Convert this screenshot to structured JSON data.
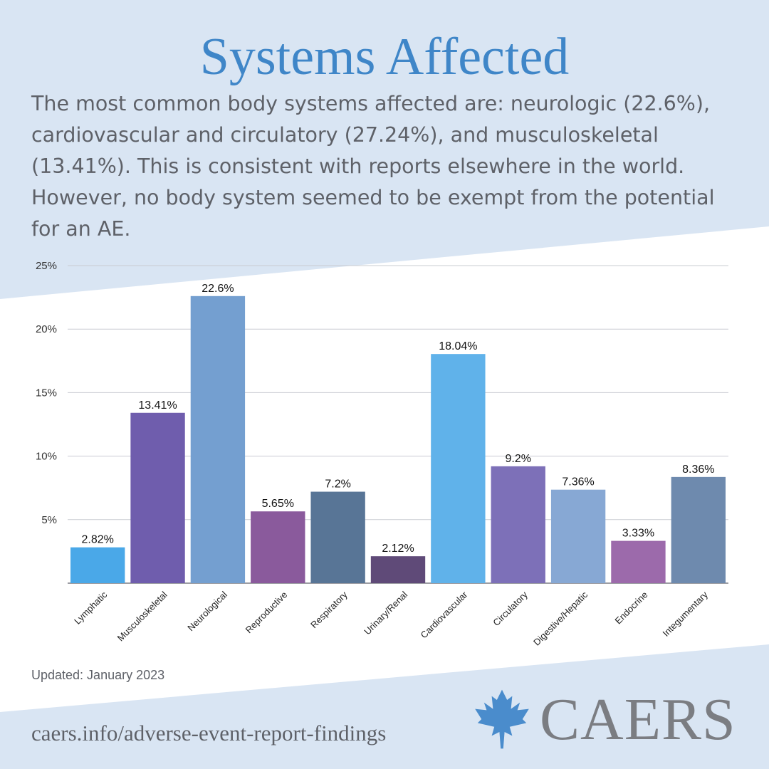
{
  "header": {
    "title": "Systems Affected",
    "description": "The most common body systems affected are: neurologic (22.6%), cardiovascular and circulatory (27.24%), and musculoskeletal (13.41%). This is consistent with reports elsewhere in the world. However, no body system seemed to be exempt from the potential for an AE."
  },
  "footer": {
    "updated": "Updated: January 2023",
    "url": "caers.info/adverse-event-report-findings",
    "logo_text": "CAERS",
    "logo_icon": "maple-leaf-icon"
  },
  "colors": {
    "background_band": "#d9e5f3",
    "title": "#3f86c8",
    "text": "#5e6168"
  },
  "chart_data": {
    "type": "bar",
    "categories": [
      "Lymphatic",
      "Musculoskeletal",
      "Neurological",
      "Reproductive",
      "Respiratory",
      "Urinary/Renal",
      "Cardiovascular",
      "Circulatory",
      "Digestive/Hepatic",
      "Endocrine",
      "Integumentary"
    ],
    "values": [
      2.82,
      13.41,
      22.6,
      5.65,
      7.2,
      2.12,
      18.04,
      9.2,
      7.36,
      3.33,
      8.36
    ],
    "value_labels": [
      "2.82%",
      "13.41%",
      "22.6%",
      "5.65%",
      "7.2%",
      "2.12%",
      "18.04%",
      "9.2%",
      "7.36%",
      "3.33%",
      "8.36%"
    ],
    "colors": [
      "#4aa8e8",
      "#6f5dad",
      "#749fd0",
      "#8a5a9c",
      "#587596",
      "#5f4a78",
      "#60b2ea",
      "#7d70b8",
      "#87a8d4",
      "#9c6aab",
      "#6e8aae"
    ],
    "y_ticks": [
      5,
      10,
      15,
      20,
      25
    ],
    "y_tick_labels": [
      "5%",
      "10%",
      "15%",
      "20%",
      "25%"
    ],
    "ylim": [
      0,
      25
    ],
    "grid": true
  }
}
